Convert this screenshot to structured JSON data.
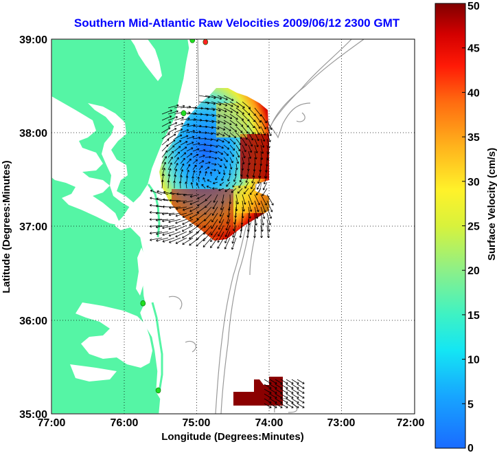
{
  "title": "Southern Mid-Atlantic Raw Velocities 2009/06/12 2300 GMT",
  "xlabel": "Longitude (Degrees:Minutes)",
  "ylabel": "Latitude (Degrees:Minutes)",
  "x_ticks": [
    "77:00",
    "76:00",
    "75:00",
    "74:00",
    "73:00",
    "72:00"
  ],
  "y_ticks": [
    "39:00",
    "38:00",
    "37:00",
    "36:00",
    "35:00"
  ],
  "x_range": [
    -77,
    -72
  ],
  "y_range": [
    35,
    39
  ],
  "colorbar": {
    "label": "Surface Velocity (cm/s)",
    "min": 0,
    "max": 50,
    "ticks": [
      "50",
      "45",
      "40",
      "35",
      "30",
      "25",
      "20",
      "15",
      "10",
      "5",
      "0"
    ]
  },
  "colors": {
    "land": "#55f5a5",
    "ocean": "#ffffff",
    "title": "#0000ff",
    "bathymetry": "#999999",
    "station": "#22dd22",
    "station_active": "#ff2222"
  },
  "stations": [
    {
      "name": "station-1",
      "lon": -75.06,
      "lat": 38.99,
      "active": false
    },
    {
      "name": "station-2",
      "lon": -74.88,
      "lat": 38.97,
      "active": true
    },
    {
      "name": "station-3",
      "lon": -75.18,
      "lat": 38.21,
      "active": false
    },
    {
      "name": "station-4",
      "lon": -75.74,
      "lat": 36.18,
      "active": false
    },
    {
      "name": "station-5",
      "lon": -75.53,
      "lat": 35.25,
      "active": false
    }
  ]
}
